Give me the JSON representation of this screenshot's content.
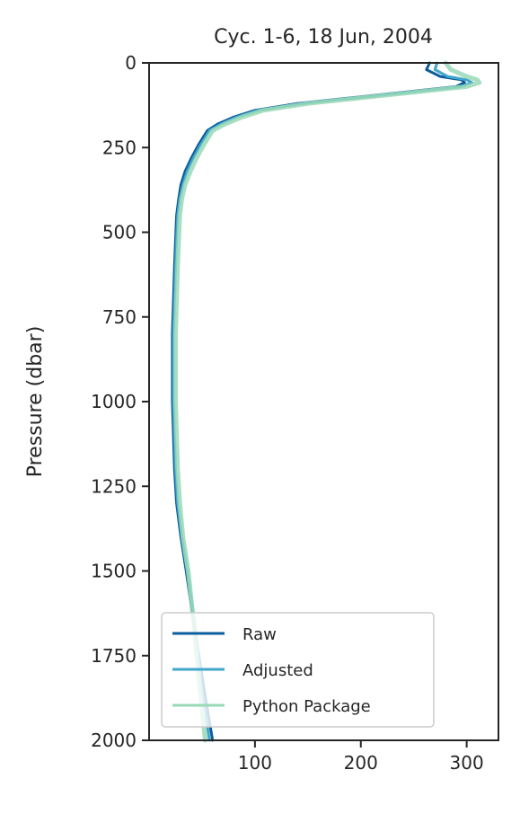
{
  "chart_data": {
    "type": "line",
    "title": "Cyc. 1-6, 18 Jun, 2004",
    "xlabel": "",
    "ylabel": "Pressure (dbar)",
    "xlim": [
      0,
      330
    ],
    "ylim": [
      2000,
      0
    ],
    "x_ticks": [
      "100",
      "200",
      "300"
    ],
    "x_tick_values": [
      100,
      200,
      300
    ],
    "y_ticks": [
      "0",
      "250",
      "500",
      "750",
      "1000",
      "1250",
      "1500",
      "1750",
      "2000"
    ],
    "y_tick_values": [
      0,
      250,
      500,
      750,
      1000,
      1250,
      1500,
      1750,
      2000
    ],
    "grid": false,
    "legend_position": "lower-left",
    "series": [
      {
        "name": "Raw",
        "color": "#0b5d9c",
        "x": [
          265,
          262,
          275,
          295,
          298,
          290,
          200,
          140,
          100,
          80,
          65,
          55,
          47,
          40,
          34,
          30,
          28,
          26,
          25,
          24,
          23,
          22,
          22,
          22,
          23,
          24,
          26,
          30,
          35,
          42,
          52,
          60
        ],
        "y": [
          0,
          20,
          40,
          50,
          58,
          70,
          100,
          120,
          140,
          160,
          180,
          200,
          240,
          280,
          320,
          360,
          400,
          450,
          520,
          600,
          700,
          800,
          900,
          1000,
          1100,
          1200,
          1300,
          1400,
          1500,
          1650,
          1850,
          2000
        ]
      },
      {
        "name": "Adjusted",
        "color": "#41a6cc",
        "x": [
          272,
          270,
          282,
          300,
          305,
          295,
          205,
          145,
          103,
          83,
          68,
          57,
          49,
          42,
          36,
          32,
          29,
          27,
          26,
          25,
          24,
          23,
          23,
          23,
          24,
          25,
          27,
          31,
          36,
          43,
          50,
          57
        ],
        "y": [
          0,
          20,
          40,
          50,
          58,
          70,
          100,
          120,
          140,
          160,
          180,
          200,
          240,
          280,
          320,
          360,
          400,
          450,
          520,
          600,
          700,
          800,
          900,
          1000,
          1100,
          1200,
          1300,
          1400,
          1500,
          1650,
          1850,
          2000
        ]
      },
      {
        "name": "Python Package",
        "color": "#99d8b6",
        "x": [
          280,
          285,
          300,
          310,
          312,
          300,
          210,
          150,
          108,
          88,
          72,
          60,
          52,
          45,
          39,
          34,
          31,
          29,
          28,
          27,
          26,
          25,
          25,
          25,
          26,
          27,
          29,
          32,
          37,
          42,
          48,
          53
        ],
        "y": [
          0,
          20,
          40,
          50,
          58,
          70,
          100,
          120,
          140,
          160,
          180,
          200,
          240,
          280,
          320,
          360,
          400,
          450,
          520,
          600,
          700,
          800,
          900,
          1000,
          1100,
          1200,
          1300,
          1400,
          1500,
          1650,
          1850,
          2000
        ]
      }
    ]
  }
}
